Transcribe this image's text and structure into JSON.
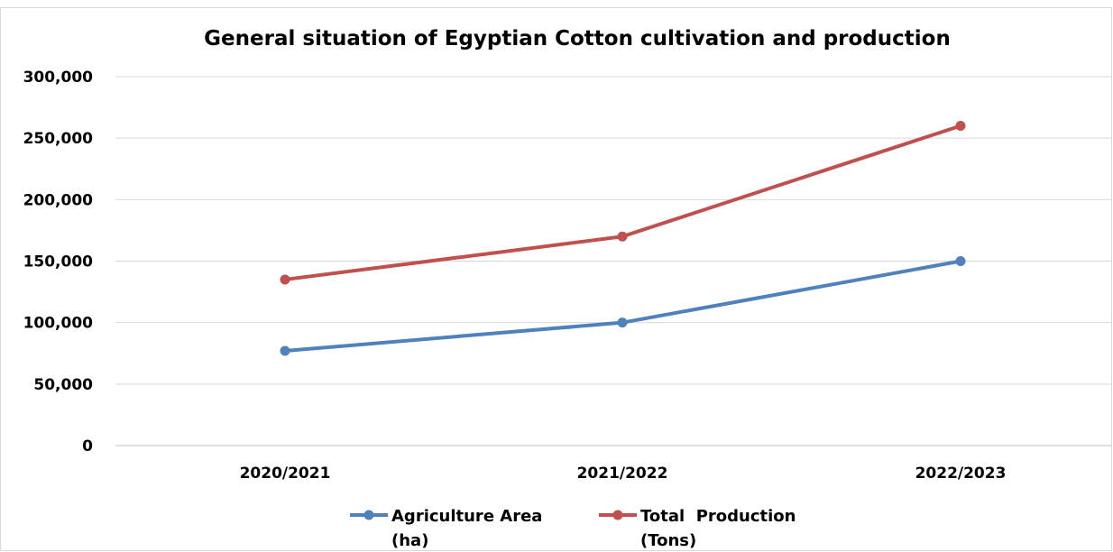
{
  "chart_data": {
    "type": "line",
    "title": "General situation of Egyptian Cotton cultivation  and production",
    "categories": [
      "2020/2021",
      "2021/2022",
      "2022/2023"
    ],
    "ylim": [
      0,
      300000
    ],
    "ytick_values": [
      0,
      50000,
      100000,
      150000,
      200000,
      250000,
      300000
    ],
    "ytick_labels": [
      "0",
      "50,000",
      "100,000",
      "150,000",
      "200,000",
      "250,000",
      "300,000"
    ],
    "grid": true,
    "legend_position": "bottom",
    "series": [
      {
        "name": "Agriculture Area (ha)",
        "legend_lines": [
          "Agriculture Area",
          "(ha)"
        ],
        "color": "#4F81BD",
        "values": [
          77000,
          100000,
          150000
        ]
      },
      {
        "name": "Total  Production (Tons)",
        "legend_lines": [
          "Total  Production",
          "(Tons)"
        ],
        "color": "#C0504D",
        "values": [
          135000,
          170000,
          260000
        ]
      }
    ]
  }
}
